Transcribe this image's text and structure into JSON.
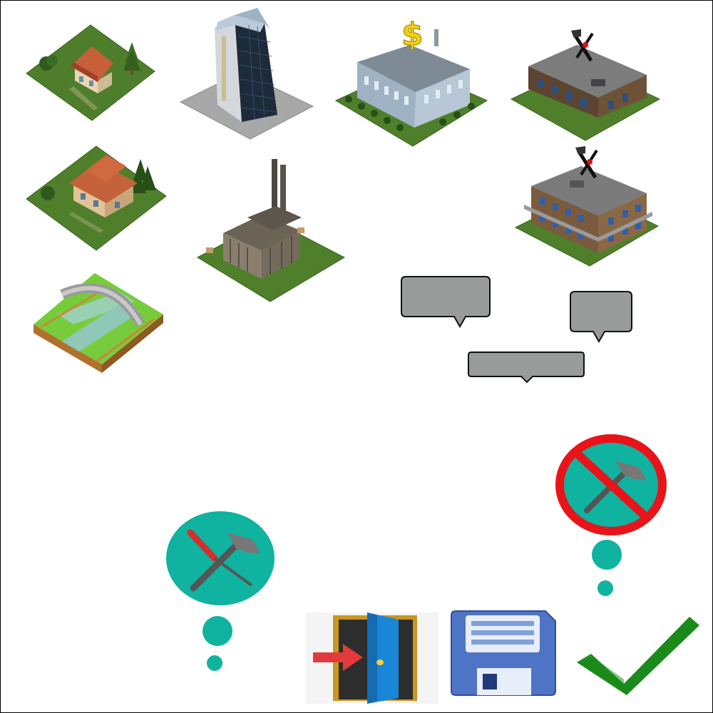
{
  "sprites": {
    "small_house": {
      "icon": "small-house-icon"
    },
    "skyscraper": {
      "icon": "skyscraper-icon"
    },
    "bank": {
      "icon": "bank-icon"
    },
    "warehouse": {
      "icon": "warehouse-icon"
    },
    "large_house": {
      "icon": "large-house-icon"
    },
    "factory": {
      "icon": "factory-icon"
    },
    "office_warehouse": {
      "icon": "office-warehouse-icon"
    },
    "bridge": {
      "icon": "bridge-icon"
    }
  },
  "speech_bubbles": [
    {
      "label": ""
    },
    {
      "label": ""
    },
    {
      "label": ""
    }
  ],
  "actions": {
    "build": {
      "icon": "build-tools-icon"
    },
    "no_build": {
      "icon": "no-build-icon"
    },
    "exit": {
      "icon": "exit-door-icon"
    },
    "save": {
      "icon": "save-disk-icon"
    },
    "confirm": {
      "icon": "checkmark-icon"
    }
  },
  "colors": {
    "grass": "#4f7f2a",
    "teal": "#0fb3a0",
    "bubble_gray": "#999b9b",
    "prohibit_red": "#e8141a",
    "check_green": "#1a8a1a",
    "disk_blue": "#4f74c6"
  }
}
